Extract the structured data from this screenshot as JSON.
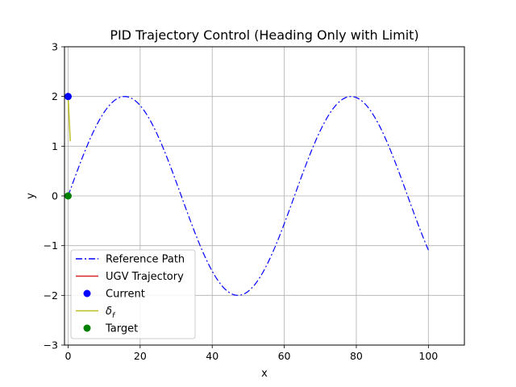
{
  "chart_data": {
    "type": "line",
    "title": "PID Trajectory Control (Heading Only with Limit)",
    "xlabel": "x",
    "ylabel": "y",
    "xlim": [
      -1,
      110
    ],
    "ylim": [
      -3,
      3
    ],
    "xticks": [
      0,
      20,
      40,
      60,
      80,
      100
    ],
    "yticks": [
      -3,
      -2,
      -1,
      0,
      1,
      2,
      3
    ],
    "xtick_labels": [
      "0",
      "20",
      "40",
      "60",
      "80",
      "100"
    ],
    "ytick_labels": [
      "−3",
      "−2",
      "−1",
      "0",
      "1",
      "2",
      "3"
    ],
    "grid": true,
    "legend_position": "lower-left",
    "series": [
      {
        "name": "Reference Path",
        "kind": "line",
        "style": "dashdot",
        "color": "#0000ff",
        "x": [
          0,
          5,
          10,
          15.7,
          20,
          25,
          30,
          35,
          40,
          47.1,
          50,
          55,
          60,
          65,
          70,
          78.5,
          85,
          90,
          95,
          100
        ],
        "y": [
          0,
          0.62,
          1.68,
          2.0,
          1.82,
          1.2,
          0.28,
          -0.7,
          -1.51,
          -2.0,
          -1.92,
          -1.42,
          -0.56,
          0.44,
          1.31,
          2.0,
          1.68,
          1.05,
          0.11,
          -1.09
        ]
      },
      {
        "name": "UGV Trajectory",
        "kind": "line",
        "style": "solid",
        "color": "#d62728",
        "x": [
          0,
          0
        ],
        "y": [
          2,
          2
        ]
      },
      {
        "name": "Current",
        "kind": "marker",
        "color": "#0000ff",
        "x": [
          0
        ],
        "y": [
          2
        ]
      },
      {
        "name": "δ_f",
        "kind": "line",
        "style": "solid",
        "color": "#bcbd22",
        "x": [
          0,
          0.6
        ],
        "y": [
          2,
          1.1
        ]
      },
      {
        "name": "Target",
        "kind": "marker",
        "color": "#008000",
        "x": [
          0
        ],
        "y": [
          0
        ]
      }
    ]
  }
}
